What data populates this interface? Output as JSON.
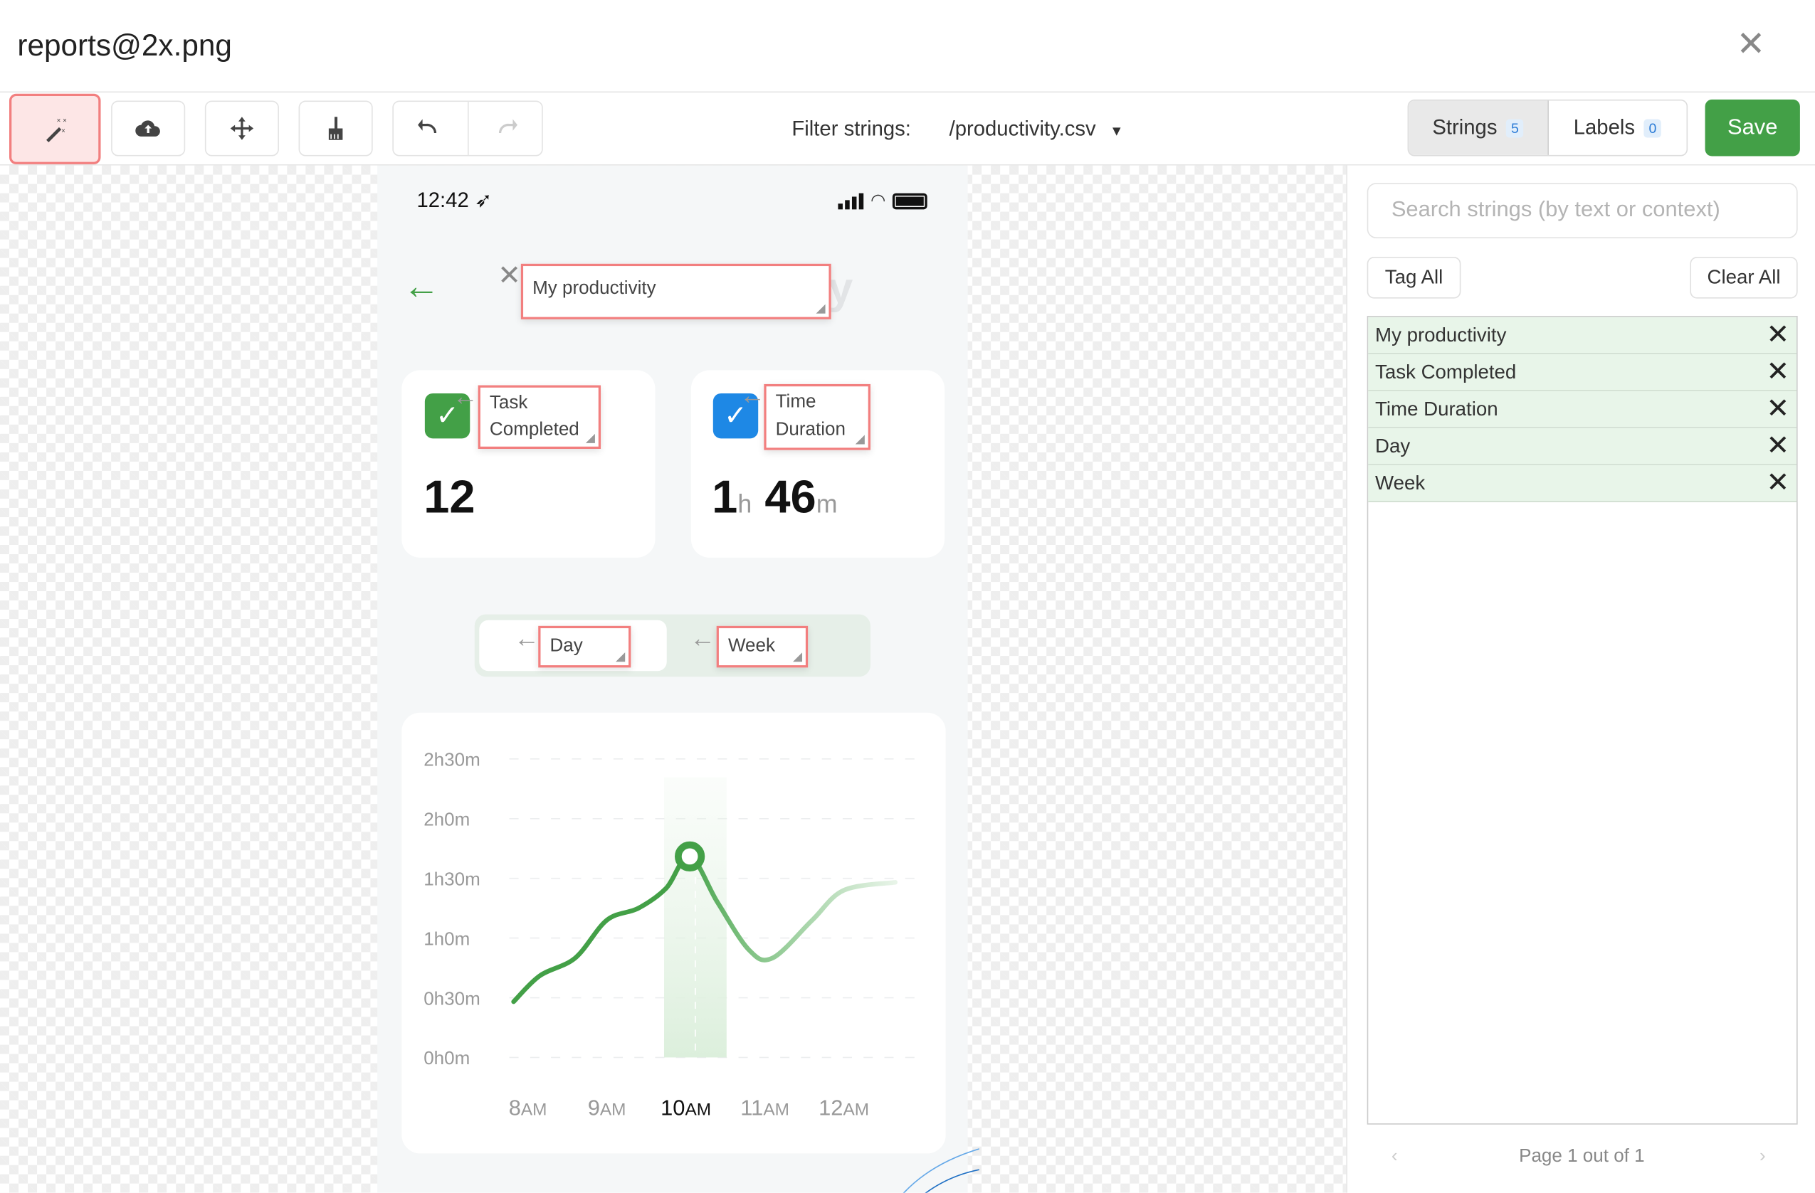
{
  "window": {
    "title": "reports@2x.png"
  },
  "toolbar": {
    "icons": [
      "magic-wand-icon",
      "cloud-upload-icon",
      "move-icon",
      "broom-icon",
      "undo-icon",
      "redo-icon"
    ],
    "filter_label": "Filter strings:",
    "filter_value": "/productivity.csv"
  },
  "tabs": [
    {
      "label": "Strings",
      "count": "5",
      "active": true
    },
    {
      "label": "Labels",
      "count": "0",
      "active": false
    }
  ],
  "save_label": "Save",
  "colors": {
    "accent": "#43a047",
    "highlight": "#f27f7f",
    "blue": "#1e88e5",
    "row_bg": "#e8f5e9"
  },
  "phone": {
    "time": "12:42",
    "title": "My productivity",
    "cards": [
      {
        "label": "Task Completed",
        "value": "12"
      },
      {
        "label": "Time Duration",
        "hours": "1",
        "h": "h",
        "minutes": "46",
        "m": "m"
      }
    ],
    "segments": [
      {
        "label": "Day",
        "active": true
      },
      {
        "label": "Week",
        "active": false
      }
    ]
  },
  "sidebar": {
    "search_placeholder": "Search strings (by text or context)",
    "tag_all": "Tag All",
    "clear_all": "Clear All",
    "strings": [
      "My productivity",
      "Task Completed",
      "Time Duration",
      "Day",
      "Week"
    ],
    "pagination": "Page 1 out of 1"
  },
  "chart_data": {
    "type": "line",
    "y_ticks": [
      "0h0m",
      "0h30m",
      "1h0m",
      "1h30m",
      "2h0m",
      "2h30m"
    ],
    "ylim_minutes": [
      0,
      150
    ],
    "x_ticks": [
      {
        "num": "8",
        "unit": "AM"
      },
      {
        "num": "9",
        "unit": "AM"
      },
      {
        "num": "10",
        "unit": "AM",
        "active": true
      },
      {
        "num": "11",
        "unit": "AM"
      },
      {
        "num": "12",
        "unit": "AM"
      }
    ],
    "x_hours": [
      8,
      9,
      10,
      11,
      12
    ],
    "grid": true,
    "highlight_hour": 10,
    "series": [
      {
        "points": [
          [
            7.82,
            28
          ],
          [
            8.15,
            41
          ],
          [
            8.6,
            50
          ],
          [
            9.0,
            69
          ],
          [
            9.4,
            75
          ],
          [
            9.75,
            85
          ],
          [
            10.05,
            101
          ],
          [
            10.4,
            78
          ],
          [
            10.8,
            54
          ],
          [
            11.1,
            50
          ],
          [
            11.6,
            69
          ],
          [
            12.0,
            84
          ],
          [
            12.65,
            88
          ]
        ]
      }
    ]
  }
}
